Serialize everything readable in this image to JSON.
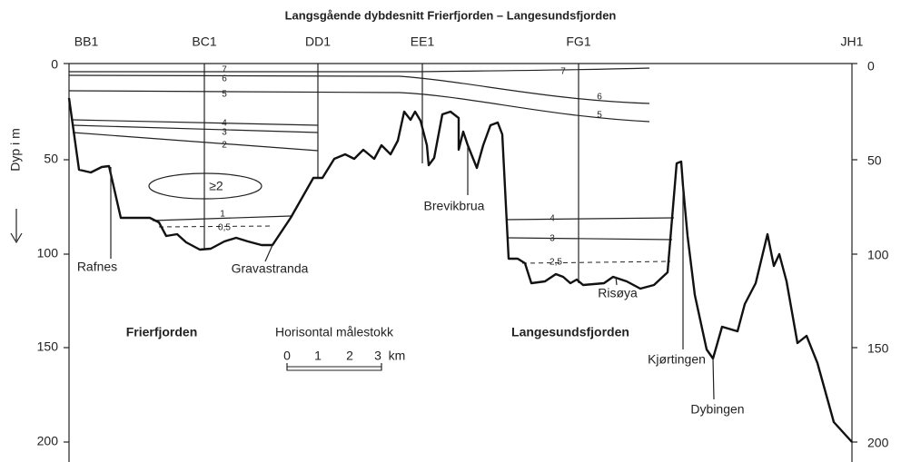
{
  "title": "Langsgående dybdesnitt Frierfjorden – Langesundsfjorden",
  "axis_label": "Dyp i m",
  "left_ticks": [
    "0",
    "50",
    "100",
    "150",
    "200"
  ],
  "right_ticks": [
    "0",
    "50",
    "100",
    "150",
    "200"
  ],
  "stations": [
    "BB1",
    "BC1",
    "DD1",
    "EE1",
    "FG1",
    "JH1"
  ],
  "places": [
    "Rafnes",
    "Gravastranda",
    "Brevikbrua",
    "Risøya",
    "Kjørtingen",
    "Dybingen"
  ],
  "regions": [
    "Frierfjorden",
    "Langesundsfjorden"
  ],
  "contours_left": [
    "7",
    "6",
    "5",
    "4",
    "3",
    "2",
    "1",
    "0,5",
    "≥2"
  ],
  "contours_right": [
    "7",
    "6",
    "5",
    "4",
    "3",
    "2,5"
  ],
  "scale": {
    "title": "Horisontal målestokk",
    "labels": [
      "0",
      "1",
      "2",
      "3",
      "km"
    ]
  }
}
